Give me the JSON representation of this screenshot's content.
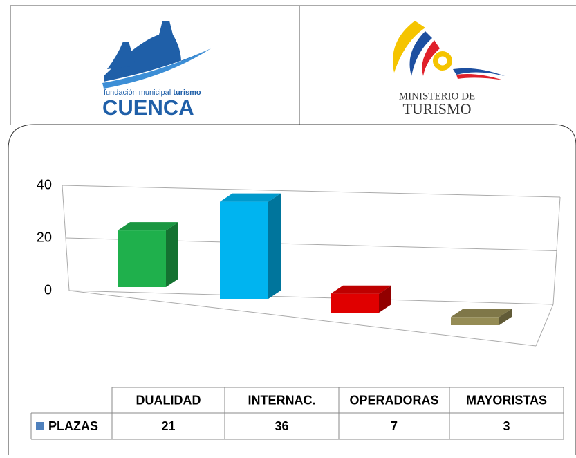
{
  "header": {
    "left_logo": {
      "line1": "fundación municipal",
      "line1_bold": "turismo",
      "line2": "CUENCA"
    },
    "right_logo": {
      "line1": "MINISTERIO DE",
      "line2": "TURISMO"
    }
  },
  "chart_data": {
    "type": "bar3d",
    "categories": [
      "DUALIDAD",
      "INTERNAC.",
      "OPERADORAS",
      "MAYORISTAS"
    ],
    "series": [
      {
        "name": "PLAZAS",
        "color": "#4f81bd",
        "values": [
          21,
          36,
          7,
          3
        ]
      }
    ],
    "bar_colors": [
      "#1fb04c",
      "#00b4f0",
      "#e00000",
      "#958c55"
    ],
    "ylim": [
      0,
      40
    ],
    "yticks": [
      0,
      20,
      40
    ],
    "grid": true,
    "data_table": true
  }
}
